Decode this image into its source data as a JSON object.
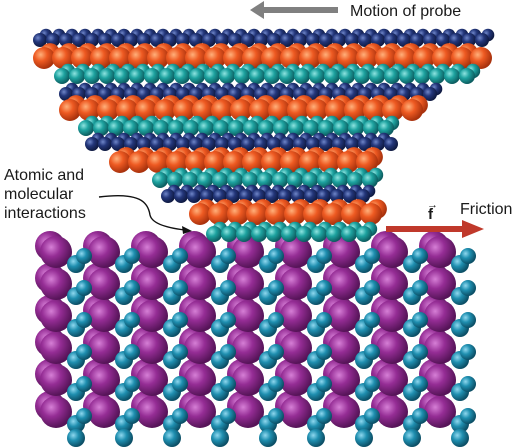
{
  "labels": {
    "motion": "Motion of probe",
    "atomic_line1": "Atomic and",
    "atomic_line2": "molecular",
    "atomic_line3": "interactions",
    "force_symbol": "f",
    "force_arrow_mark": "→",
    "friction": "Friction"
  },
  "colors": {
    "probe_orange": "#e8541f",
    "probe_navy": "#22336e",
    "probe_teal": "#1d9a9a",
    "surface_purple": "#8e2a8e",
    "surface_teal": "#1f8fa8",
    "motion_arrow": "#808080",
    "friction_arrow": "#c0392b",
    "text": "#1a1a1a"
  }
}
